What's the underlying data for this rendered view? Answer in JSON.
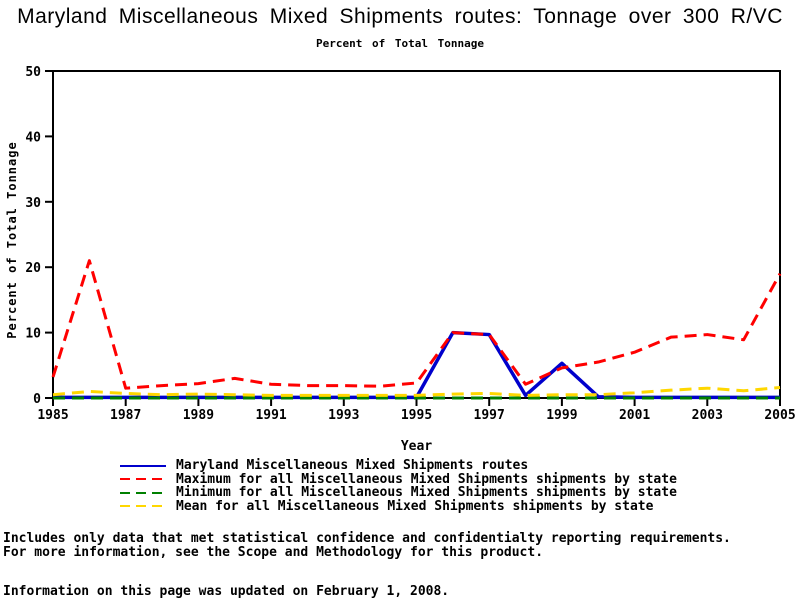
{
  "title": "Maryland Miscellaneous Mixed Shipments routes: Tonnage over 300 R/VC",
  "subtitle": "Percent of Total Tonnage",
  "chart_data": {
    "type": "line",
    "x": [
      1985,
      1986,
      1987,
      1988,
      1989,
      1990,
      1991,
      1992,
      1993,
      1994,
      1995,
      1996,
      1997,
      1998,
      1999,
      2000,
      2001,
      2002,
      2003,
      2004,
      2005
    ],
    "xlabel": "Year",
    "ylabel": "Percent of Total Tonnage",
    "ylim": [
      0,
      50
    ],
    "yticks": [
      0,
      10,
      20,
      30,
      40,
      50
    ],
    "xticks": [
      1985,
      1987,
      1989,
      1991,
      1993,
      1995,
      1997,
      1999,
      2001,
      2003,
      2005
    ],
    "grid": false,
    "legend_position": "bottom-left",
    "frame": true,
    "series": [
      {
        "name": "Maryland Miscellaneous Mixed Shipments routes",
        "color": "#0000CC",
        "style": "solid",
        "width": 3.5,
        "values": [
          0.1,
          0.1,
          0.1,
          0.1,
          0.1,
          0.1,
          0.1,
          0.1,
          0.1,
          0.1,
          0.1,
          10.0,
          9.7,
          0.4,
          5.3,
          0.2,
          0.1,
          0.1,
          0.1,
          0.1,
          0.1
        ]
      },
      {
        "name": "Maximum for all Miscellaneous Mixed Shipments shipments by state",
        "color": "#FF0000",
        "style": "dashed",
        "width": 3,
        "values": [
          3.2,
          21.0,
          1.5,
          1.9,
          2.2,
          3.0,
          2.1,
          1.9,
          1.9,
          1.8,
          2.3,
          10.0,
          9.7,
          2.1,
          4.6,
          5.5,
          7.0,
          9.3,
          9.7,
          8.9,
          19.0
        ]
      },
      {
        "name": "Minimum for all Miscellaneous Mixed Shipments shipments by state",
        "color": "#008000",
        "style": "dashed",
        "width": 3,
        "values": [
          0,
          0,
          0,
          0,
          0,
          0,
          0,
          0,
          0,
          0,
          0,
          0,
          0,
          0,
          0,
          0,
          0,
          0,
          0,
          0,
          0
        ]
      },
      {
        "name": "Mean for all Miscellaneous Mixed Shipments shipments by state",
        "color": "#FFD700",
        "style": "dashed",
        "width": 3,
        "values": [
          0.5,
          1.0,
          0.7,
          0.5,
          0.6,
          0.5,
          0.4,
          0.4,
          0.4,
          0.4,
          0.4,
          0.6,
          0.7,
          0.4,
          0.5,
          0.5,
          0.8,
          1.2,
          1.5,
          1.1,
          1.6
        ]
      }
    ]
  },
  "footnotes": {
    "line1": "Includes only data that met statistical confidence and confidentialty reporting requirements.",
    "line2": "For more information, see the Scope and Methodology for this product.",
    "updated": "Information on this page was updated on February 1, 2008."
  }
}
